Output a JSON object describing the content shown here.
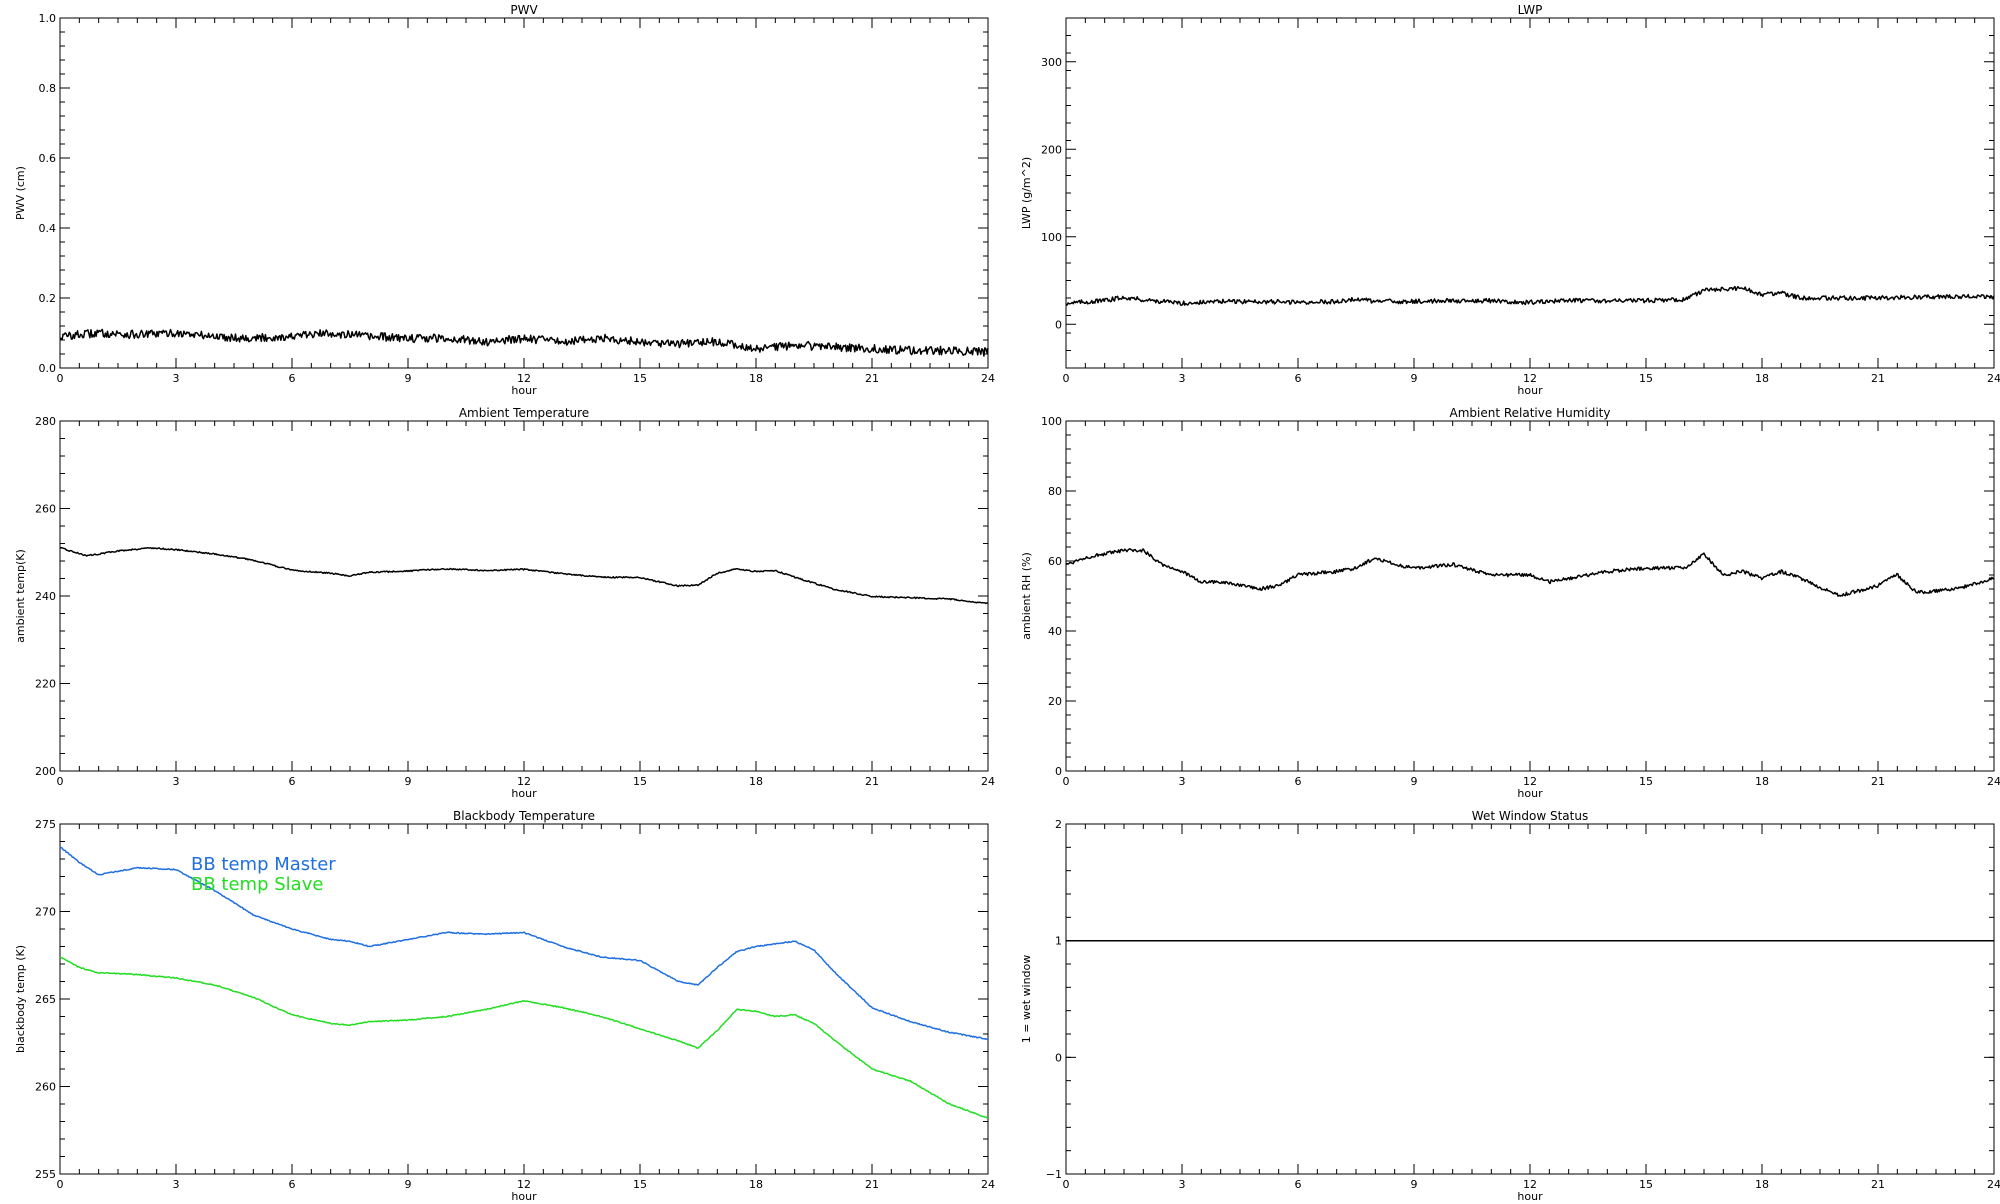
{
  "chart_data": [
    {
      "type": "line",
      "title": "PWV",
      "xlabel": "hour",
      "ylabel": "PWV (cm)",
      "xlim": [
        0,
        24
      ],
      "ylim": [
        0.0,
        1.0
      ],
      "xticks": [
        0,
        3,
        6,
        9,
        12,
        15,
        18,
        21,
        24
      ],
      "xtick_labels": [
        "0",
        "3",
        "6",
        "9",
        "12",
        "15",
        "18",
        "21",
        "24"
      ],
      "yticks": [
        0.0,
        0.2,
        0.4,
        0.6,
        0.8,
        1.0
      ],
      "ytick_labels": [
        "0.0",
        "0.2",
        "0.4",
        "0.6",
        "0.8",
        "1.0"
      ],
      "grid": false,
      "series": [
        {
          "color": "#000000",
          "noise": 0.012,
          "x": [
            0,
            1,
            2,
            3,
            4,
            5,
            6,
            7,
            8,
            9,
            10,
            11,
            12,
            13,
            14,
            15,
            16,
            17,
            18,
            19,
            20,
            21,
            22,
            23,
            24
          ],
          "y": [
            0.09,
            0.1,
            0.095,
            0.1,
            0.09,
            0.085,
            0.09,
            0.1,
            0.09,
            0.085,
            0.085,
            0.075,
            0.085,
            0.075,
            0.085,
            0.075,
            0.07,
            0.075,
            0.055,
            0.065,
            0.06,
            0.055,
            0.05,
            0.05,
            0.045
          ]
        }
      ]
    },
    {
      "type": "line",
      "title": "LWP",
      "xlabel": "hour",
      "ylabel": "LWP (g/m^2)",
      "xlim": [
        0,
        24
      ],
      "ylim": [
        -50,
        350
      ],
      "xticks": [
        0,
        3,
        6,
        9,
        12,
        15,
        18,
        21,
        24
      ],
      "xtick_labels": [
        "0",
        "3",
        "6",
        "9",
        "12",
        "15",
        "18",
        "21",
        "24"
      ],
      "yticks": [
        0,
        100,
        200,
        300
      ],
      "ytick_labels": [
        "0",
        "100",
        "200",
        "300"
      ],
      "grid": false,
      "series": [
        {
          "color": "#000000",
          "noise": 2.5,
          "x": [
            0,
            1,
            1.5,
            2,
            3,
            4,
            5,
            6,
            7,
            7.5,
            8,
            9,
            10,
            11,
            12,
            13,
            14,
            15,
            16,
            16.5,
            17,
            17.5,
            18,
            18.5,
            19,
            20,
            21,
            22,
            23,
            24
          ],
          "y": [
            24,
            27,
            31,
            28,
            24,
            26,
            26,
            25,
            26,
            29,
            26,
            26,
            27,
            27,
            25,
            27,
            27,
            27,
            28,
            39,
            40,
            41,
            34,
            36,
            30,
            30,
            30,
            31,
            32,
            31
          ]
        }
      ]
    },
    {
      "type": "line",
      "title": "Ambient Temperature",
      "xlabel": "hour",
      "ylabel": "ambient temp(K)",
      "xlim": [
        0,
        24
      ],
      "ylim": [
        200,
        280
      ],
      "xticks": [
        0,
        3,
        6,
        9,
        12,
        15,
        18,
        21,
        24
      ],
      "xtick_labels": [
        "0",
        "3",
        "6",
        "9",
        "12",
        "15",
        "18",
        "21",
        "24"
      ],
      "yticks": [
        200,
        220,
        240,
        260,
        280
      ],
      "ytick_labels": [
        "200",
        "220",
        "240",
        "260",
        "280"
      ],
      "grid": false,
      "series": [
        {
          "color": "#000000",
          "noise": 0.15,
          "x": [
            0,
            0.7,
            1.5,
            2.3,
            3,
            4,
            5,
            6,
            7,
            7.5,
            8,
            9,
            10,
            11,
            12,
            13,
            14,
            15,
            16,
            16.5,
            17,
            17.5,
            18,
            18.5,
            19,
            20,
            21,
            22,
            23,
            24
          ],
          "y": [
            251,
            249.2,
            250.3,
            251,
            250.6,
            249.6,
            248.2,
            245.9,
            245.2,
            244.6,
            245.4,
            245.7,
            246.2,
            245.8,
            246.1,
            245.1,
            244.3,
            244.2,
            242.3,
            242.5,
            245.2,
            246.2,
            245.6,
            245.8,
            244.3,
            241.6,
            239.9,
            239.6,
            239.3,
            238.3
          ]
        }
      ]
    },
    {
      "type": "line",
      "title": "Ambient Relative Humidity",
      "xlabel": "hour",
      "ylabel": "ambient RH (%)",
      "xlim": [
        0,
        24
      ],
      "ylim": [
        0,
        100
      ],
      "xticks": [
        0,
        3,
        6,
        9,
        12,
        15,
        18,
        21,
        24
      ],
      "xtick_labels": [
        "0",
        "3",
        "6",
        "9",
        "12",
        "15",
        "18",
        "21",
        "24"
      ],
      "yticks": [
        0,
        20,
        40,
        60,
        80,
        100
      ],
      "ytick_labels": [
        "0",
        "20",
        "40",
        "60",
        "80",
        "100"
      ],
      "grid": false,
      "series": [
        {
          "color": "#000000",
          "noise": 0.5,
          "x": [
            0,
            0.5,
            1,
            1.5,
            2,
            2.5,
            3,
            3.5,
            4,
            5,
            5.5,
            6,
            7,
            7.5,
            8,
            8.5,
            9,
            10,
            11,
            12,
            12.5,
            13,
            14,
            15,
            16,
            16.5,
            17,
            17.5,
            18,
            18.5,
            19,
            20,
            21,
            21.5,
            22,
            23,
            24
          ],
          "y": [
            59,
            61,
            62,
            63,
            63,
            59,
            57,
            54,
            54,
            52,
            53,
            56,
            57,
            58,
            61,
            59,
            58,
            59,
            56,
            56,
            54,
            55,
            57,
            58,
            58,
            62,
            56,
            57,
            55,
            57,
            55,
            50,
            53,
            56,
            51,
            52,
            55
          ]
        }
      ]
    },
    {
      "type": "line",
      "title": "Blackbody Temperature",
      "xlabel": "hour",
      "ylabel": "blackbody temp (K)",
      "xlim": [
        0,
        24
      ],
      "ylim": [
        255,
        275
      ],
      "xticks": [
        0,
        3,
        6,
        9,
        12,
        15,
        18,
        21,
        24
      ],
      "xtick_labels": [
        "0",
        "3",
        "6",
        "9",
        "12",
        "15",
        "18",
        "21",
        "24"
      ],
      "yticks": [
        255,
        260,
        265,
        270,
        275
      ],
      "ytick_labels": [
        "255",
        "260",
        "265",
        "270",
        "275"
      ],
      "grid": false,
      "legend": "top-left",
      "series": [
        {
          "name": "BB temp Master",
          "color": "#1f6fe0",
          "noise": 0.03,
          "x": [
            0,
            0.5,
            1,
            1.5,
            2,
            3,
            4,
            5,
            6,
            7,
            7.5,
            8,
            9,
            10,
            11,
            12,
            13,
            14,
            15,
            16,
            16.5,
            17,
            17.5,
            18,
            19,
            19.5,
            20,
            21,
            22,
            23,
            24
          ],
          "y": [
            273.7,
            272.8,
            272.1,
            272.3,
            272.5,
            272.4,
            271.2,
            269.8,
            269.0,
            268.4,
            268.3,
            268.0,
            268.4,
            268.8,
            268.7,
            268.8,
            268.0,
            267.4,
            267.2,
            266.0,
            265.8,
            266.8,
            267.7,
            268.0,
            268.3,
            267.8,
            266.6,
            264.5,
            263.7,
            263.1,
            262.7
          ]
        },
        {
          "name": "BB temp Slave",
          "color": "#22dd22",
          "noise": 0.03,
          "x": [
            0,
            0.5,
            1,
            2,
            3,
            4,
            5,
            6,
            7,
            7.5,
            8,
            9,
            10,
            11,
            12,
            13,
            14,
            15,
            16,
            16.5,
            17,
            17.5,
            18,
            18.5,
            19,
            19.5,
            20,
            21,
            22,
            23,
            24
          ],
          "y": [
            267.4,
            266.8,
            266.5,
            266.4,
            266.2,
            265.8,
            265.1,
            264.1,
            263.6,
            263.5,
            263.7,
            263.8,
            264.0,
            264.4,
            264.9,
            264.5,
            264.0,
            263.3,
            262.6,
            262.2,
            263.2,
            264.4,
            264.3,
            264.0,
            264.1,
            263.6,
            262.7,
            261.0,
            260.3,
            259.0,
            258.2
          ]
        }
      ]
    },
    {
      "type": "line",
      "title": "Wet Window Status",
      "xlabel": "hour",
      "ylabel": "1 = wet window",
      "xlim": [
        0,
        24
      ],
      "ylim": [
        -1,
        2
      ],
      "xticks": [
        0,
        3,
        6,
        9,
        12,
        15,
        18,
        21,
        24
      ],
      "xtick_labels": [
        "0",
        "3",
        "6",
        "9",
        "12",
        "15",
        "18",
        "21",
        "24"
      ],
      "yticks": [
        -1,
        0,
        1,
        2
      ],
      "ytick_labels": [
        "−1",
        "0",
        "1",
        "2"
      ],
      "grid": false,
      "series": [
        {
          "color": "#000000",
          "noise": 0,
          "x": [
            0,
            24
          ],
          "y": [
            1,
            1
          ]
        }
      ]
    }
  ]
}
